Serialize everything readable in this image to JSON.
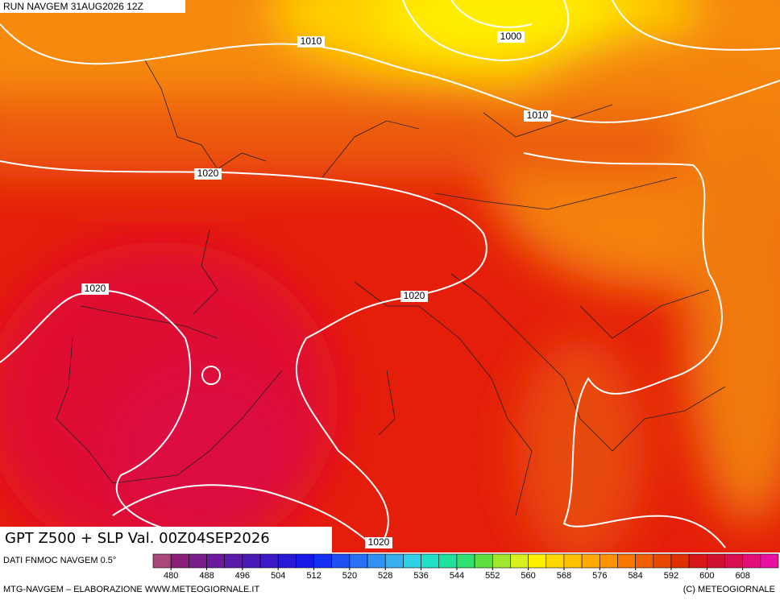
{
  "header": {
    "run": "RUN NAVGEM 31AUG2026 12Z"
  },
  "isobar_labels": [
    "1010",
    "1000",
    "1010",
    "1020",
    "1020",
    "1020",
    "1020"
  ],
  "title": "GPT Z500 + SLP Val. 00Z04SEP2026",
  "legend": {
    "source": "DATI FNMOC NAVGEM 0.5°",
    "ticks": [
      480,
      488,
      496,
      504,
      512,
      520,
      528,
      536,
      544,
      552,
      560,
      568,
      576,
      584,
      592,
      600,
      608
    ],
    "colors": [
      "#a8477c",
      "#8a1e78",
      "#7a1c8a",
      "#6a1a9a",
      "#5a1aaa",
      "#4a1ab8",
      "#3a1ac8",
      "#2a1ad8",
      "#1a1ae8",
      "#1430f0",
      "#1e50f4",
      "#2870f4",
      "#3090f4",
      "#38b0f0",
      "#30d0e8",
      "#20e0c8",
      "#20e0a0",
      "#30e070",
      "#60e040",
      "#a0e830",
      "#d8f020",
      "#fff000",
      "#ffd800",
      "#ffc000",
      "#ffa800",
      "#ff9000",
      "#f87800",
      "#f06000",
      "#e84800",
      "#e03000",
      "#d81818",
      "#d01030",
      "#d81050",
      "#e01078",
      "#e810a0"
    ]
  },
  "footer": {
    "left": "MTG-NAVGEM – ELABORAZIONE WWW.METEOGIORNALE.IT",
    "right": "(C) METEOGIORNALE"
  }
}
